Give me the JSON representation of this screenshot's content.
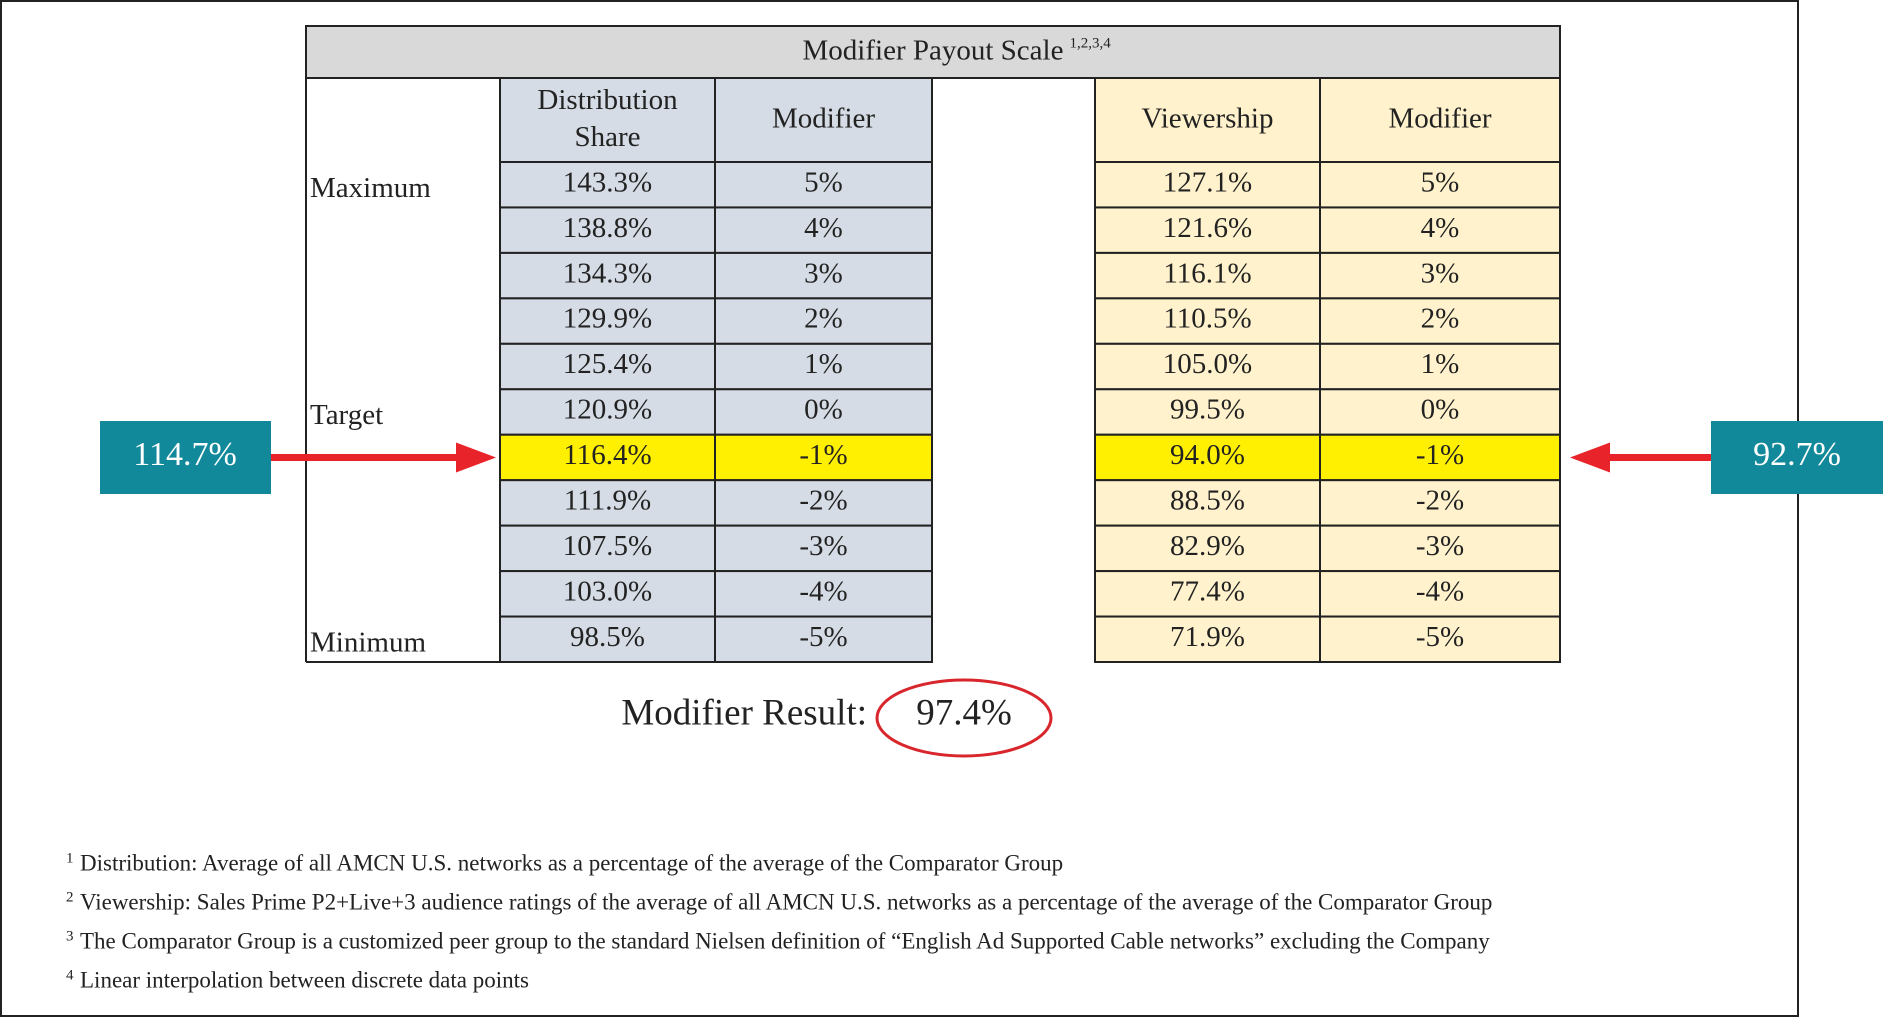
{
  "title": "Modifier Payout Scale",
  "title_superscript": "1,2,3,4",
  "scale_labels": {
    "maximum": "Maximum",
    "target": "Target",
    "minimum": "Minimum"
  },
  "distribution_table": {
    "headers": [
      "Distribution Share",
      "Modifier"
    ],
    "rows": [
      [
        "143.3%",
        "5%"
      ],
      [
        "138.8%",
        "4%"
      ],
      [
        "134.3%",
        "3%"
      ],
      [
        "129.9%",
        "2%"
      ],
      [
        "125.4%",
        "1%"
      ],
      [
        "120.9%",
        "0%"
      ],
      [
        "116.4%",
        "-1%"
      ],
      [
        "111.9%",
        "-2%"
      ],
      [
        "107.5%",
        "-3%"
      ],
      [
        "103.0%",
        "-4%"
      ],
      [
        "98.5%",
        "-5%"
      ]
    ]
  },
  "viewership_table": {
    "headers": [
      "Viewership",
      "Modifier"
    ],
    "rows": [
      [
        "127.1%",
        "5%"
      ],
      [
        "121.6%",
        "4%"
      ],
      [
        "116.1%",
        "3%"
      ],
      [
        "110.5%",
        "2%"
      ],
      [
        "105.0%",
        "1%"
      ],
      [
        "99.5%",
        "0%"
      ],
      [
        "94.0%",
        "-1%"
      ],
      [
        "88.5%",
        "-2%"
      ],
      [
        "82.9%",
        "-3%"
      ],
      [
        "77.4%",
        "-4%"
      ],
      [
        "71.9%",
        "-5%"
      ]
    ]
  },
  "highlighted_row": 6,
  "distribution_callout": "114.7%",
  "viewership_callout": "92.7%",
  "result": {
    "label": "Modifier Result:",
    "value": "97.4%"
  },
  "footnotes": [
    {
      "mark": "1",
      "text": "Distribution: Average of all AMCN U.S. networks as a percentage of the average of the Comparator Group"
    },
    {
      "mark": "2",
      "text": "Viewership: Sales Prime P2+Live+3 audience ratings of the average of all AMCN U.S. networks as a percentage of the average of the Comparator Group"
    },
    {
      "mark": "3",
      "text": "The Comparator Group is a customized peer group to the standard Nielsen definition of “English Ad Supported Cable networks” excluding the Company"
    },
    {
      "mark": "4",
      "text": "Linear interpolation between discrete data points"
    }
  ]
}
